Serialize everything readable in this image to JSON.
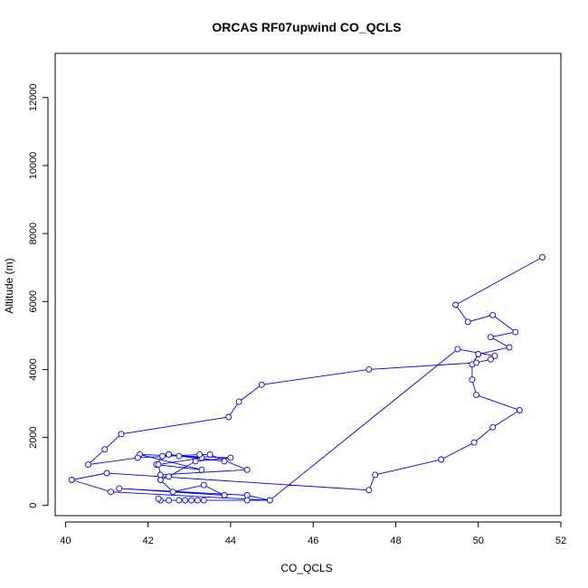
{
  "chart_data": {
    "type": "line",
    "title": "ORCAS RF07upwind CO_QCLS",
    "xlabel": "CO_QCLS",
    "ylabel": "Altitude (m)",
    "xlim": [
      39.75,
      52.0
    ],
    "ylim": [
      -300,
      13300
    ],
    "xticks": [
      "40",
      "42",
      "44",
      "46",
      "48",
      "50",
      "52"
    ],
    "yticks": [
      "0",
      "2000",
      "4000",
      "6000",
      "8000",
      "10000",
      "12000"
    ],
    "grid": false,
    "legend": "none",
    "marker": "open-circle",
    "line_color": "#0000ff",
    "series": [
      {
        "x": [
          51.55,
          49.45,
          49.75,
          50.35,
          50.9,
          50.3,
          50.75,
          50.0,
          49.85,
          49.85,
          49.95,
          51.0,
          50.35,
          49.9,
          49.1,
          47.5,
          47.35,
          41.0,
          40.15,
          41.1,
          44.95,
          44.4,
          41.3,
          43.85,
          43.35,
          42.6,
          42.3,
          42.5,
          43.15,
          44.0,
          41.8,
          43.3,
          42.2,
          42.35,
          42.5,
          43.85,
          42.75,
          42.5,
          43.3,
          42.25,
          42.3,
          44.4,
          43.5,
          43.25,
          41.75,
          40.55,
          40.95,
          41.35,
          43.95,
          44.2,
          44.75,
          47.35,
          49.95,
          50.3,
          50.4,
          49.5,
          44.95,
          44.4,
          43.35,
          43.2,
          43.05,
          42.9,
          42.75,
          42.5,
          42.3,
          42.25
        ],
        "y": [
          7300,
          5900,
          5400,
          5600,
          5100,
          4950,
          4650,
          4450,
          4150,
          3700,
          3250,
          2800,
          2300,
          1850,
          1350,
          900,
          450,
          950,
          750,
          400,
          150,
          300,
          500,
          300,
          600,
          400,
          750,
          850,
          1300,
          1400,
          1500,
          1050,
          1200,
          1450,
          1500,
          1300,
          1450,
          1500,
          1400,
          1200,
          900,
          1050,
          1500,
          1500,
          1400,
          1200,
          1650,
          2100,
          2600,
          3050,
          3550,
          4000,
          4200,
          4300,
          4400,
          4600,
          150,
          150,
          150,
          150,
          150,
          150,
          150,
          150,
          150,
          200
        ]
      }
    ]
  }
}
